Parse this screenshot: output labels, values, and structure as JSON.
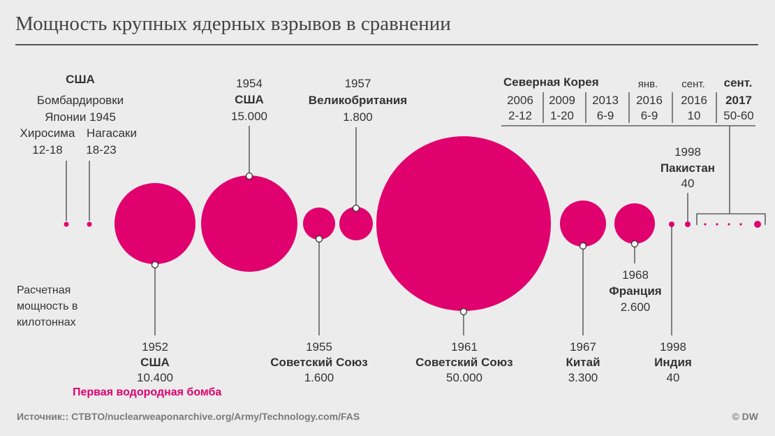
{
  "title": "Мощность крупных ядерных взрывов в сравнении",
  "note_lines": [
    "Расчетная",
    "мощность в",
    "килотоннах"
  ],
  "source": "Источник:: CTBTO/nuclearweaponarchive.org/Army/Technology.com/FAS",
  "copyright": "© DW",
  "accent": "#e0006e",
  "japan": {
    "country": "США",
    "line1": "Бомбардировки",
    "line2": "Японии 1945",
    "hiroshima": "Хиросима",
    "hiroshima_yield": "12-18",
    "nagasaki": "Нагасаки",
    "nagasaki_yield": "18-23"
  },
  "tests": [
    {
      "id": "us1952",
      "year": "1952",
      "country": "США",
      "yield": "10.400",
      "kt": 10400,
      "note": "Первая водородная бомба"
    },
    {
      "id": "us1954",
      "year": "1954",
      "country": "США",
      "yield": "15.000",
      "kt": 15000
    },
    {
      "id": "su1955",
      "year": "1955",
      "country": "Советский Союз",
      "yield": "1.600",
      "kt": 1600
    },
    {
      "id": "uk1957",
      "year": "1957",
      "country": "Великобритания",
      "yield": "1.800",
      "kt": 1800
    },
    {
      "id": "su1961",
      "year": "1961",
      "country": "Советский Союз",
      "yield": "50.000",
      "kt": 50000
    },
    {
      "id": "cn1967",
      "year": "1967",
      "country": "Китай",
      "yield": "3.300",
      "kt": 3300
    },
    {
      "id": "fr1968",
      "year": "1968",
      "country": "Франция",
      "yield": "2.600",
      "kt": 2600
    },
    {
      "id": "in1998",
      "year": "1998",
      "country": "Индия",
      "yield": "40",
      "kt": 40
    },
    {
      "id": "pk1998",
      "year": "1998",
      "country": "Пакистан",
      "yield": "40",
      "kt": 40
    }
  ],
  "north_korea": {
    "header": "Северная Корея",
    "tests": [
      {
        "date": "2006",
        "yield": "2-12"
      },
      {
        "date": "2009",
        "yield": "1-20"
      },
      {
        "date": "2013",
        "yield": "6-9"
      },
      {
        "month": "янв.",
        "date": "2016",
        "yield": "6-9"
      },
      {
        "month": "сент.",
        "date": "2016",
        "yield": "10"
      },
      {
        "month": "сент.",
        "date": "2017",
        "yield": "50-60"
      }
    ]
  }
}
